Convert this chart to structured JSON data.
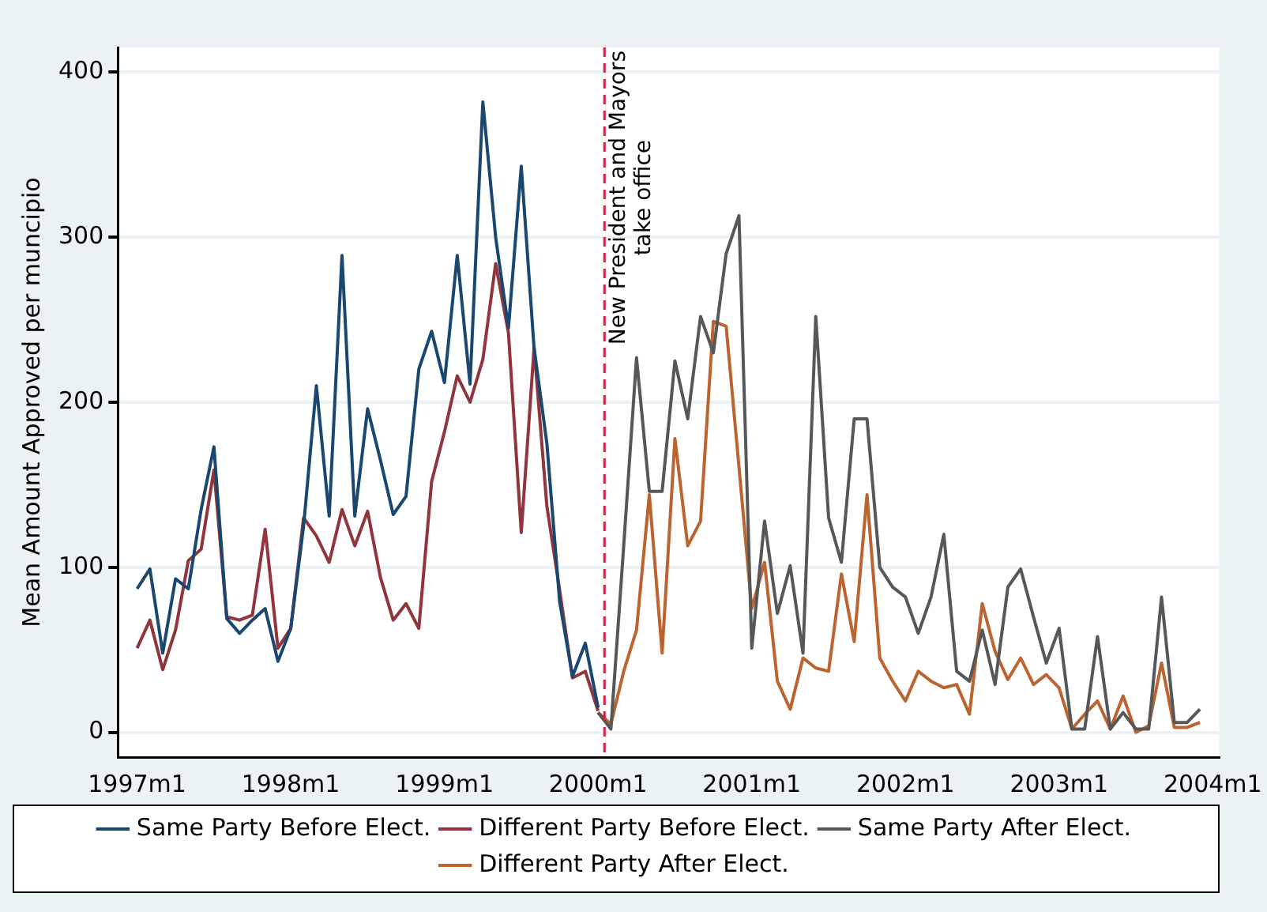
{
  "chart_data": {
    "type": "line",
    "ylabel": "Mean Amount Approved per muncipio",
    "xlim": [
      "1996-11-16",
      "2004-01-16"
    ],
    "ylim": [
      -15,
      415
    ],
    "xticks": [
      {
        "value": "1997-01",
        "label": "1997m1"
      },
      {
        "value": "1998-01",
        "label": "1998m1"
      },
      {
        "value": "1999-01",
        "label": "1999m1"
      },
      {
        "value": "2000-01",
        "label": "2000m1"
      },
      {
        "value": "2001-01",
        "label": "2001m1"
      },
      {
        "value": "2002-01",
        "label": "2002m1"
      },
      {
        "value": "2003-01",
        "label": "2003m1"
      },
      {
        "value": "2004-01",
        "label": "2004m1"
      }
    ],
    "yticks": [
      0,
      100,
      200,
      300,
      400
    ],
    "grid": "y",
    "legend": "bottom",
    "marker": "none",
    "line_style": "solid",
    "ref_lines": [
      {
        "axis": "x",
        "value": "2000-01-16",
        "label": "New President and Mayors\ntake office",
        "color": "#d21f47",
        "line_style": "dashed"
      }
    ],
    "series": [
      {
        "name": "Same Party Before Elect.",
        "color": "#1a476f",
        "x": [
          "1997-01",
          "1997-02",
          "1997-03",
          "1997-04",
          "1997-05",
          "1997-06",
          "1997-07",
          "1997-08",
          "1997-09",
          "1997-10",
          "1997-11",
          "1997-12",
          "1998-01",
          "1998-02",
          "1998-03",
          "1998-04",
          "1998-05",
          "1998-06",
          "1998-07",
          "1998-08",
          "1998-09",
          "1998-10",
          "1998-11",
          "1998-12",
          "1999-01",
          "1999-02",
          "1999-03",
          "1999-04",
          "1999-05",
          "1999-06",
          "1999-07",
          "1999-08",
          "1999-09",
          "1999-10",
          "1999-11",
          "1999-12",
          "2000-01"
        ],
        "values": [
          87,
          99,
          48,
          93,
          87,
          135,
          173,
          69,
          60,
          68,
          75,
          43,
          63,
          125,
          210,
          131,
          289,
          131,
          196,
          165,
          132,
          143,
          220,
          243,
          212,
          289,
          211,
          382,
          300,
          245,
          343,
          233,
          175,
          79,
          34,
          54,
          15
        ]
      },
      {
        "name": "Different Party Before Elect.",
        "color": "#90353b",
        "x": [
          "1997-01",
          "1997-02",
          "1997-03",
          "1997-04",
          "1997-05",
          "1997-06",
          "1997-07",
          "1997-08",
          "1997-09",
          "1997-10",
          "1997-11",
          "1997-12",
          "1998-01",
          "1998-02",
          "1998-03",
          "1998-04",
          "1998-05",
          "1998-06",
          "1998-07",
          "1998-08",
          "1998-09",
          "1998-10",
          "1998-11",
          "1998-12",
          "1999-01",
          "1999-02",
          "1999-03",
          "1999-04",
          "1999-05",
          "1999-06",
          "1999-07",
          "1999-08",
          "1999-09",
          "1999-10",
          "1999-11",
          "1999-12",
          "2000-01"
        ],
        "values": [
          51,
          68,
          38,
          62,
          104,
          111,
          159,
          70,
          68,
          71,
          123,
          51,
          63,
          130,
          119,
          103,
          135,
          113,
          134,
          94,
          68,
          78,
          63,
          152,
          182,
          216,
          200,
          226,
          284,
          242,
          121,
          233,
          137,
          86,
          33,
          37,
          13
        ]
      },
      {
        "name": "Same Party After Elect.",
        "color": "#555759",
        "x": [
          "2000-01",
          "2000-02",
          "2000-03",
          "2000-04",
          "2000-05",
          "2000-06",
          "2000-07",
          "2000-08",
          "2000-09",
          "2000-10",
          "2000-11",
          "2000-12",
          "2001-01",
          "2001-02",
          "2001-03",
          "2001-04",
          "2001-05",
          "2001-06",
          "2001-07",
          "2001-08",
          "2001-09",
          "2001-10",
          "2001-11",
          "2001-12",
          "2002-01",
          "2002-02",
          "2002-03",
          "2002-04",
          "2002-05",
          "2002-06",
          "2002-07",
          "2002-08",
          "2002-09",
          "2002-10",
          "2002-11",
          "2002-12",
          "2003-01",
          "2003-02",
          "2003-03",
          "2003-04",
          "2003-05",
          "2003-06",
          "2003-07",
          "2003-08",
          "2003-09",
          "2003-10",
          "2003-11",
          "2003-12"
        ],
        "values": [
          12,
          2,
          113,
          227,
          146,
          146,
          225,
          190,
          252,
          230,
          290,
          313,
          51,
          128,
          72,
          101,
          48,
          252,
          130,
          103,
          190,
          190,
          100,
          88,
          82,
          60,
          82,
          120,
          37,
          31,
          62,
          29,
          88,
          99,
          70,
          42,
          63,
          2,
          2,
          58,
          2,
          12,
          2,
          2,
          82,
          6,
          6,
          14
        ]
      },
      {
        "name": "Different Party After Elect.",
        "color": "#bb6430",
        "x": [
          "2000-01",
          "2000-02",
          "2000-03",
          "2000-04",
          "2000-05",
          "2000-06",
          "2000-07",
          "2000-08",
          "2000-09",
          "2000-10",
          "2000-11",
          "2000-12",
          "2001-01",
          "2001-02",
          "2001-03",
          "2001-04",
          "2001-05",
          "2001-06",
          "2001-07",
          "2001-08",
          "2001-09",
          "2001-10",
          "2001-11",
          "2001-12",
          "2002-01",
          "2002-02",
          "2002-03",
          "2002-04",
          "2002-05",
          "2002-06",
          "2002-07",
          "2002-08",
          "2002-09",
          "2002-10",
          "2002-11",
          "2002-12",
          "2003-01",
          "2003-02",
          "2003-03",
          "2003-04",
          "2003-05",
          "2003-06",
          "2003-07",
          "2003-08",
          "2003-09",
          "2003-10",
          "2003-11",
          "2003-12"
        ],
        "values": [
          12,
          5,
          37,
          62,
          144,
          48,
          178,
          113,
          128,
          249,
          246,
          161,
          75,
          103,
          31,
          14,
          45,
          39,
          37,
          96,
          55,
          144,
          45,
          31,
          19,
          37,
          31,
          27,
          29,
          11,
          78,
          49,
          32,
          45,
          29,
          35,
          27,
          2,
          11,
          19,
          2,
          22,
          0,
          4,
          42,
          3,
          3,
          6
        ]
      }
    ]
  }
}
